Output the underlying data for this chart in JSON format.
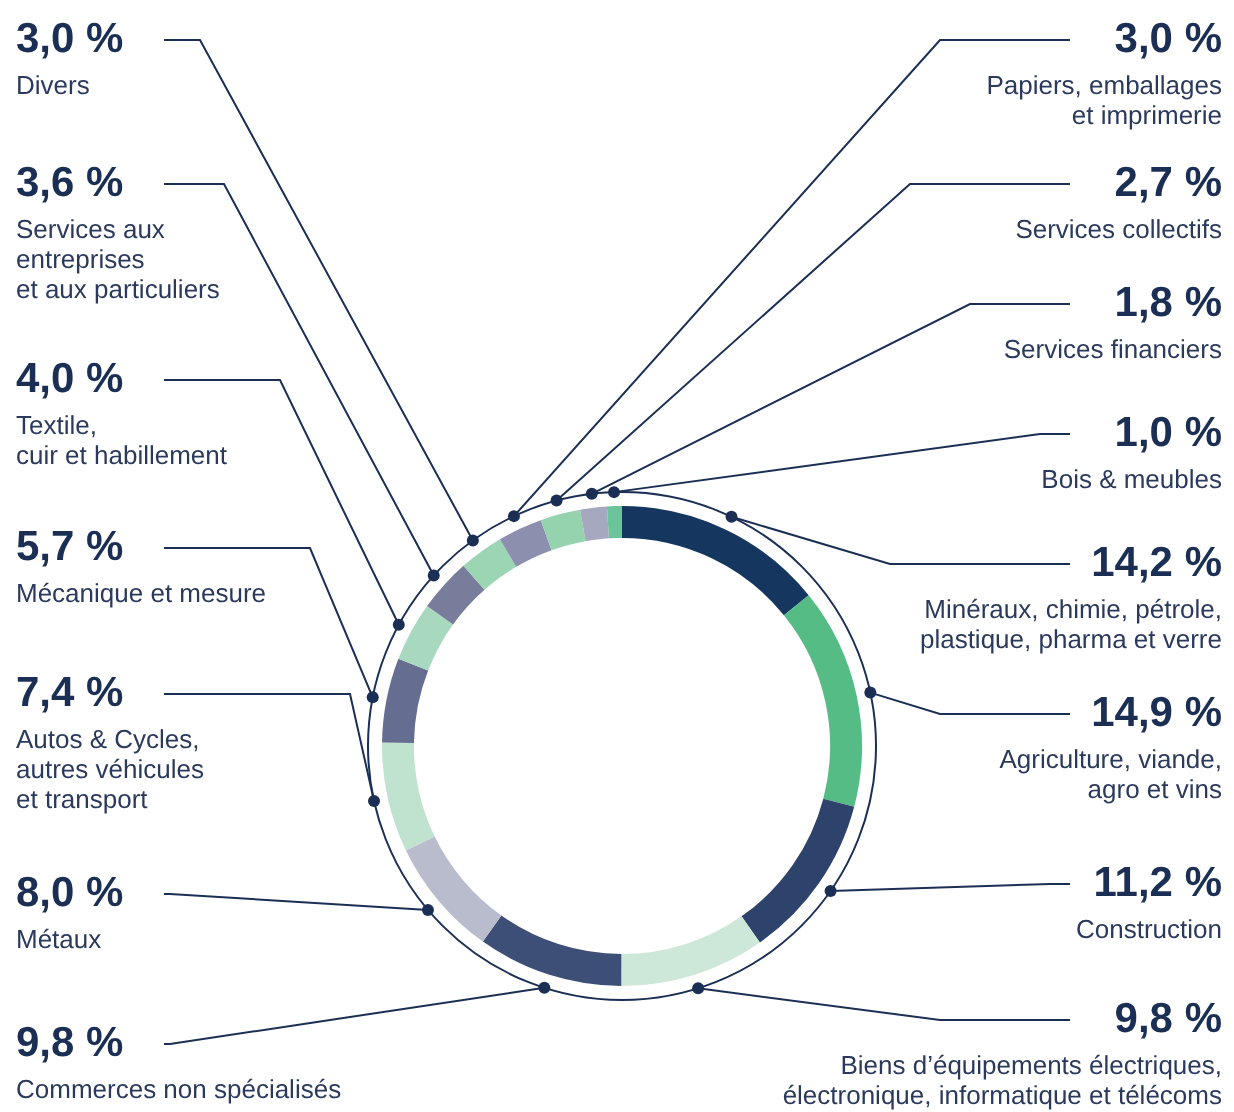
{
  "chart_data": {
    "type": "donut",
    "categories": [
      "Minéraux, chimie, pétrole,\nplastique, pharma et verre",
      "Agriculture, viande,\nagro et vins",
      "Construction",
      "Biens d’équipements électriques,\nélectronique, informatique et télécoms",
      "Commerces non spécialisés",
      "Métaux",
      "Autos & Cycles,\nautres véhicules\net transport",
      "Mécanique et mesure",
      "Textile,\ncuir et habillement",
      "Services aux\nentreprises\net aux particuliers",
      "Divers",
      "Papiers, emballages\net imprimerie",
      "Services collectifs",
      "Services financiers",
      "Bois & meubles"
    ],
    "values": [
      14.2,
      14.9,
      11.2,
      9.8,
      9.8,
      8.0,
      7.4,
      5.7,
      4.0,
      3.6,
      3.0,
      3.0,
      2.7,
      1.8,
      1.0
    ],
    "value_labels": [
      "14,2 %",
      "14,9 %",
      "11,2 %",
      "9,8 %",
      "9,8 %",
      "8,0 %",
      "7,4 %",
      "5,7 %",
      "4,0 %",
      "3,6 %",
      "3,0 %",
      "3,0 %",
      "2,7 %",
      "1,8 %",
      "1,0 %"
    ],
    "colors": [
      "#15365f",
      "#55bc86",
      "#2e436b",
      "#cde8d8",
      "#3d4f77",
      "#b9bccd",
      "#bfe3cf",
      "#656e91",
      "#a8d9bf",
      "#787d9c",
      "#9bd5b3",
      "#8c8fae",
      "#95d3ae",
      "#a6a8bf",
      "#6cc49a"
    ]
  }
}
